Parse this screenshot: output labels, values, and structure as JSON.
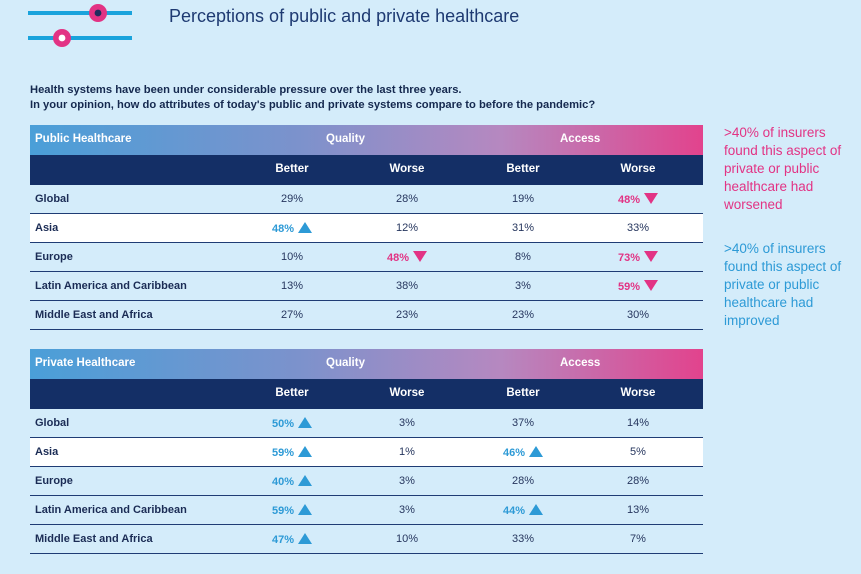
{
  "title": "Perceptions of public and private healthcare",
  "intro": {
    "line1": "Health systems have been under considerable pressure over the last three years.",
    "line2": "In your opinion, how do attributes of today's public and private systems compare to before the pandemic?"
  },
  "colors": {
    "pink": "#e23384",
    "blue": "#2d9ad6",
    "navy": "#142f66"
  },
  "tables": [
    {
      "title": "Public Healthcare",
      "group1": "Quality",
      "group2": "Access",
      "columns": [
        "Better",
        "Worse",
        "Better",
        "Worse"
      ],
      "rows": [
        {
          "label": "Global",
          "values": [
            "29%",
            "28%",
            "19%",
            "48%"
          ],
          "marks": [
            "",
            "",
            "",
            "down"
          ]
        },
        {
          "label": "Asia",
          "values": [
            "48%",
            "12%",
            "31%",
            "33%"
          ],
          "marks": [
            "up",
            "",
            "",
            ""
          ]
        },
        {
          "label": "Europe",
          "values": [
            "10%",
            "48%",
            "8%",
            "73%"
          ],
          "marks": [
            "",
            "down",
            "",
            "down"
          ]
        },
        {
          "label": "Latin America and Caribbean",
          "values": [
            "13%",
            "38%",
            "3%",
            "59%"
          ],
          "marks": [
            "",
            "",
            "",
            "down"
          ]
        },
        {
          "label": "Middle East and Africa",
          "values": [
            "27%",
            "23%",
            "23%",
            "30%"
          ],
          "marks": [
            "",
            "",
            "",
            ""
          ]
        }
      ]
    },
    {
      "title": "Private Healthcare",
      "group1": "Quality",
      "group2": "Access",
      "columns": [
        "Better",
        "Worse",
        "Better",
        "Worse"
      ],
      "rows": [
        {
          "label": "Global",
          "values": [
            "50%",
            "3%",
            "37%",
            "14%"
          ],
          "marks": [
            "up",
            "",
            "",
            ""
          ]
        },
        {
          "label": "Asia",
          "values": [
            "59%",
            "1%",
            "46%",
            "5%"
          ],
          "marks": [
            "up",
            "",
            "up",
            ""
          ]
        },
        {
          "label": "Europe",
          "values": [
            "40%",
            "3%",
            "28%",
            "28%"
          ],
          "marks": [
            "up",
            "",
            "",
            ""
          ]
        },
        {
          "label": "Latin America and Caribbean",
          "values": [
            "59%",
            "3%",
            "44%",
            "13%"
          ],
          "marks": [
            "up",
            "",
            "up",
            ""
          ]
        },
        {
          "label": "Middle East and Africa",
          "values": [
            "47%",
            "10%",
            "33%",
            "7%"
          ],
          "marks": [
            "up",
            "",
            "",
            ""
          ]
        }
      ]
    }
  ],
  "notes": {
    "worsened": ">40% of insurers found this aspect of private or public healthcare had worsened",
    "improved": ">40% of insurers found this aspect of private or public healthcare had improved"
  },
  "icons": {
    "logo": "two-slider-lines-icon",
    "up": "up-triangle-icon",
    "down": "down-triangle-icon"
  }
}
